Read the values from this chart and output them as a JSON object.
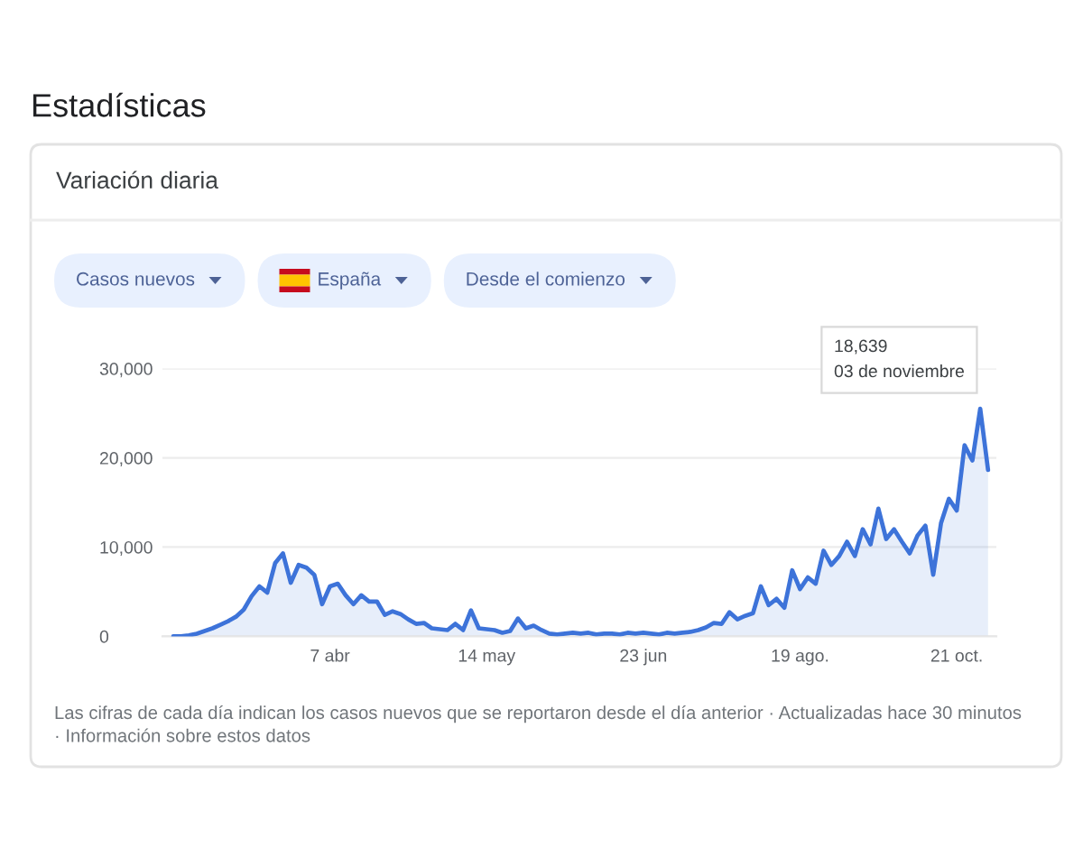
{
  "chart_data": {
    "type": "area",
    "title": "Estadísticas",
    "subtitle": "Variación diaria",
    "categories": [
      null,
      null,
      null,
      null,
      null,
      null,
      null,
      null,
      null,
      null,
      null,
      null,
      null,
      null,
      null,
      null,
      null,
      null,
      null,
      null,
      "7 abr",
      null,
      null,
      null,
      null,
      null,
      null,
      null,
      null,
      null,
      null,
      null,
      null,
      null,
      null,
      null,
      null,
      null,
      null,
      null,
      "14 may",
      null,
      null,
      null,
      null,
      null,
      null,
      null,
      null,
      null,
      null,
      null,
      null,
      null,
      null,
      null,
      null,
      null,
      null,
      null,
      "23 jun",
      null,
      null,
      null,
      null,
      null,
      null,
      null,
      null,
      null,
      null,
      null,
      null,
      null,
      null,
      null,
      null,
      null,
      null,
      null,
      "19 ago.",
      null,
      null,
      null,
      null,
      null,
      null,
      null,
      null,
      null,
      null,
      null,
      null,
      null,
      null,
      null,
      null,
      null,
      null,
      null,
      "21 oct.",
      null,
      null,
      null,
      null
    ],
    "series": [
      {
        "color": "#3d73d9",
        "values": [
          0,
          0,
          100,
          300,
          600,
          900,
          1300,
          1700,
          2200,
          3000,
          4500,
          5600,
          4900,
          8200,
          9300,
          6000,
          8000,
          7700,
          6900,
          3600,
          5600,
          5900,
          4600,
          3600,
          4600,
          3900,
          3900,
          2400,
          2800,
          2500,
          1900,
          1400,
          1500,
          900,
          800,
          700,
          1400,
          700,
          2900,
          900,
          800,
          700,
          400,
          600,
          2000,
          900,
          1200,
          700,
          300,
          200,
          300,
          400,
          300,
          400,
          200,
          300,
          300,
          200,
          400,
          300,
          400,
          300,
          200,
          400,
          300,
          400,
          500,
          700,
          1000,
          1500,
          1400,
          2700,
          1900,
          2300,
          2600,
          5600,
          3500,
          4200,
          3200,
          7400,
          5300,
          6600,
          5900,
          9600,
          8000,
          9000,
          10600,
          9000,
          12000,
          10300,
          14300,
          10900,
          12000,
          10600,
          9300,
          11300,
          12400,
          6900,
          12700,
          15400,
          14100,
          21400,
          19700,
          25500,
          18639
        ]
      }
    ],
    "ylim": [
      0,
      30000
    ],
    "yticks": [
      {
        "value": 0,
        "label": "0"
      },
      {
        "value": 10000,
        "label": "10,000"
      },
      {
        "value": 20000,
        "label": "20,000"
      },
      {
        "value": 30000,
        "label": "30,000"
      }
    ],
    "grid": "y",
    "annotations": [
      "Casos nuevos",
      "España",
      "Desde el comienzo",
      "Las cifras de cada día indican los casos nuevos que se reportaron desde el día anterior · Actualizadas hace 30 minutos · Información sobre estos datos",
      "18,639\n03 de noviembre"
    ]
  }
}
